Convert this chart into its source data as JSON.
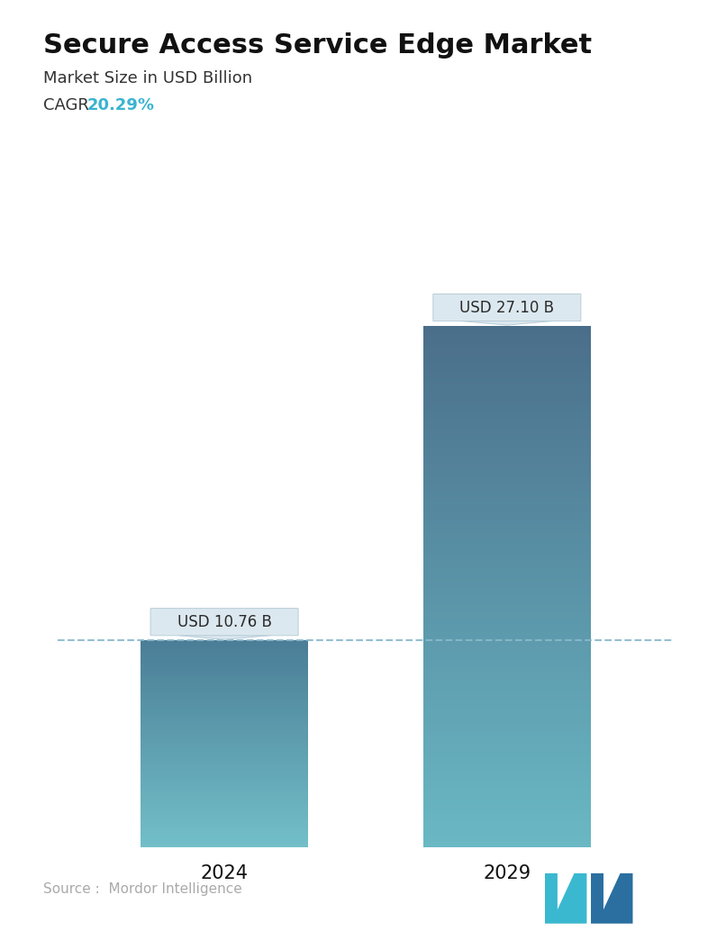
{
  "title": "Secure Access Service Edge Market",
  "subtitle": "Market Size in USD Billion",
  "cagr_label": "CAGR ",
  "cagr_value": "20.29%",
  "cagr_color": "#3ab4d0",
  "categories": [
    "2024",
    "2029"
  ],
  "values": [
    10.76,
    27.1
  ],
  "labels": [
    "USD 10.76 B",
    "USD 27.10 B"
  ],
  "bar1_color_top": "#4a7d96",
  "bar1_color_bottom": "#72bfc8",
  "bar2_color_top": "#4a6e8a",
  "bar2_color_bottom": "#6ab8c4",
  "dashed_line_color": "#8ab8cc",
  "source_text": "Source :  Mordor Intelligence",
  "source_color": "#aaaaaa",
  "background_color": "#ffffff",
  "title_fontsize": 22,
  "subtitle_fontsize": 13,
  "cagr_fontsize": 13,
  "tick_fontsize": 15,
  "label_fontsize": 12,
  "source_fontsize": 11,
  "max_val": 30,
  "x_positions": [
    0.28,
    0.72
  ],
  "bar_width": 0.26
}
